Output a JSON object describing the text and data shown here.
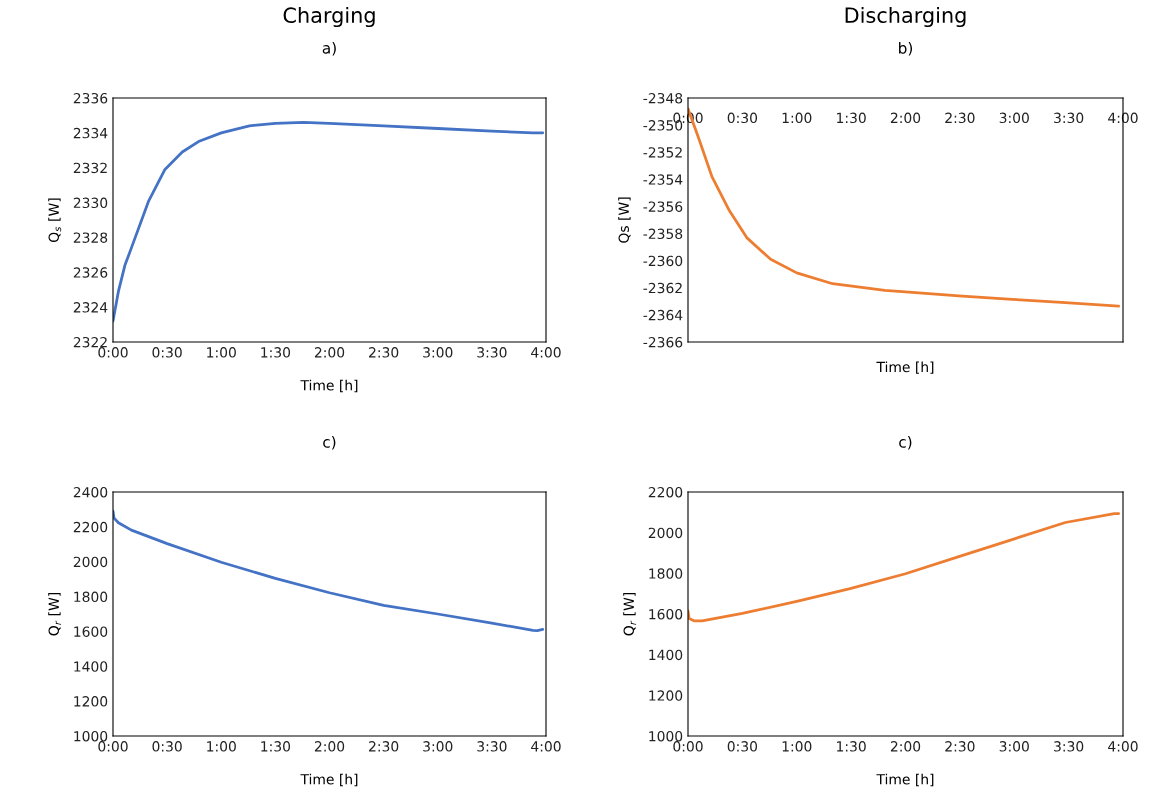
{
  "chart_data": [
    {
      "type": "line",
      "title": "a)",
      "annotations": [
        "Charging"
      ],
      "xlabel": "Time [h]",
      "ylabel": "Q$_{s}$ [W]",
      "x": [
        0,
        0.05,
        0.11,
        0.17,
        0.33,
        0.48,
        0.64,
        0.79,
        1.0,
        1.26,
        1.5,
        1.76,
        2.0,
        2.5,
        3.0,
        3.5,
        3.88,
        3.97
      ],
      "series": [
        {
          "color": "#4472c4",
          "values": [
            2323.2,
            2324.9,
            2326.4,
            2327.4,
            2330.1,
            2331.9,
            2332.9,
            2333.5,
            2334.0,
            2334.4,
            2334.55,
            2334.6,
            2334.55,
            2334.4,
            2334.25,
            2334.1,
            2334.0,
            2334.0
          ]
        }
      ],
      "xlim": [
        0,
        4
      ],
      "ylim": [
        2322,
        2336
      ],
      "yticks": [
        2322,
        2324,
        2326,
        2328,
        2330,
        2332,
        2334,
        2336
      ],
      "xticks": [
        {
          "value": 0,
          "label": "0:00"
        },
        {
          "value": 0.5,
          "label": "0:30"
        },
        {
          "value": 1,
          "label": "1:00"
        },
        {
          "value": 1.5,
          "label": "1:30"
        },
        {
          "value": 2,
          "label": "2:00"
        },
        {
          "value": 2.5,
          "label": "2:30"
        },
        {
          "value": 3,
          "label": "3:00"
        },
        {
          "value": 3.5,
          "label": "3:30"
        },
        {
          "value": 4,
          "label": "4:00"
        }
      ],
      "grid": false,
      "legend": false
    },
    {
      "type": "line",
      "title": "b)",
      "annotations": [
        "Discharging"
      ],
      "xlabel": "Time [h]",
      "ylabel": "Qs [W]",
      "x": [
        0,
        0.1,
        0.22,
        0.38,
        0.54,
        0.76,
        1.0,
        1.33,
        1.81,
        2.0,
        2.49,
        2.98,
        3.47,
        3.96
      ],
      "series": [
        {
          "color": "#ed7d31",
          "values": [
            -2348.8,
            -2351.0,
            -2353.8,
            -2356.3,
            -2358.3,
            -2359.9,
            -2360.9,
            -2361.7,
            -2362.2,
            -2362.3,
            -2362.6,
            -2362.85,
            -2363.1,
            -2363.35
          ]
        }
      ],
      "xlim": [
        0,
        4
      ],
      "ylim": [
        -2366,
        -2348
      ],
      "yticks": [
        -2366,
        -2364,
        -2362,
        -2360,
        -2358,
        -2356,
        -2354,
        -2352,
        -2350,
        -2348
      ],
      "xticks": [
        {
          "value": 0,
          "label": "0:00"
        },
        {
          "value": 0.5,
          "label": "0:30"
        },
        {
          "value": 1,
          "label": "1:00"
        },
        {
          "value": 1.5,
          "label": "1:30"
        },
        {
          "value": 2,
          "label": "2:00"
        },
        {
          "value": 2.5,
          "label": "2:30"
        },
        {
          "value": 3,
          "label": "3:00"
        },
        {
          "value": 3.5,
          "label": "3:30"
        },
        {
          "value": 4,
          "label": "4:00"
        }
      ],
      "grid": false,
      "legend": false
    },
    {
      "type": "line",
      "title": "c)",
      "xlabel": "Time [h]",
      "ylabel": "Q$_{r}$ [W]",
      "x": [
        0,
        0.01,
        0.05,
        0.17,
        0.5,
        1.0,
        1.5,
        2.0,
        2.5,
        3.0,
        3.5,
        3.88,
        3.92,
        3.97
      ],
      "series": [
        {
          "color": "#4472c4",
          "values": [
            2290,
            2250,
            2224,
            2181,
            2104,
            1997,
            1904,
            1822,
            1750,
            1700,
            1648,
            1606,
            1605,
            1612
          ]
        }
      ],
      "xlim": [
        0,
        4
      ],
      "ylim": [
        1000,
        2400
      ],
      "yticks": [
        1000,
        1200,
        1400,
        1600,
        1800,
        2000,
        2200,
        2400
      ],
      "xticks": [
        {
          "value": 0,
          "label": "0:00"
        },
        {
          "value": 0.5,
          "label": "0:30"
        },
        {
          "value": 1,
          "label": "1:00"
        },
        {
          "value": 1.5,
          "label": "1:30"
        },
        {
          "value": 2,
          "label": "2:00"
        },
        {
          "value": 2.5,
          "label": "2:30"
        },
        {
          "value": 3,
          "label": "3:00"
        },
        {
          "value": 3.5,
          "label": "3:30"
        },
        {
          "value": 4,
          "label": "4:00"
        }
      ],
      "grid": false,
      "legend": false
    },
    {
      "type": "line",
      "title": "c)",
      "xlabel": "Time [h]",
      "ylabel": "Q$_{r}$ [W]",
      "x": [
        0,
        0.01,
        0.06,
        0.13,
        0.5,
        1.0,
        1.49,
        2.0,
        2.49,
        2.98,
        3.47,
        3.92,
        3.96
      ],
      "series": [
        {
          "color": "#ed7d31",
          "values": [
            1615,
            1578,
            1566,
            1566,
            1603,
            1662,
            1725,
            1798,
            1882,
            1966,
            2050,
            2094,
            2094
          ]
        }
      ],
      "xlim": [
        0,
        4
      ],
      "ylim": [
        1000,
        2200
      ],
      "yticks": [
        1000,
        1200,
        1400,
        1600,
        1800,
        2000,
        2200
      ],
      "xticks": [
        {
          "value": 0,
          "label": "0:00"
        },
        {
          "value": 0.5,
          "label": "0:30"
        },
        {
          "value": 1,
          "label": "1:00"
        },
        {
          "value": 1.5,
          "label": "1:30"
        },
        {
          "value": 2,
          "label": "2:00"
        },
        {
          "value": 2.5,
          "label": "2:30"
        },
        {
          "value": 3,
          "label": "3:00"
        },
        {
          "value": 3.5,
          "label": "3:30"
        },
        {
          "value": 4,
          "label": "4:00"
        }
      ],
      "grid": false,
      "legend": false
    }
  ]
}
